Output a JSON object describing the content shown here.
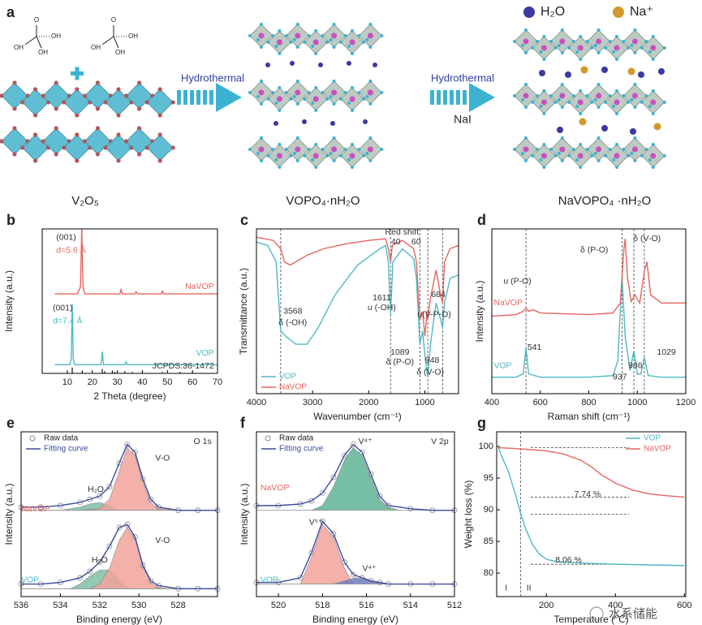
{
  "panel_a": {
    "label": "a",
    "legend": [
      "H₂O",
      "Na⁺"
    ],
    "molecules": [
      [
        "O",
        "OH",
        "OH",
        "OH"
      ],
      [
        "O",
        "OH",
        "OH",
        "OH"
      ]
    ],
    "arrows": [
      {
        "label": "Hydrothermal"
      },
      {
        "label": "Hydrothermal",
        "reagent": "NaI"
      }
    ],
    "captions": [
      "V₂O₅",
      "VOPO₄·nH₂O",
      "NaVOPO₄ ·nH₂O"
    ]
  },
  "watermark": "水系储能",
  "chart_data": [
    {
      "type": "line",
      "label": "b",
      "xlabel": "2 Theta (degree)",
      "ylabel": "Intensity (a.u.)",
      "xlim": [
        0,
        70
      ],
      "xticks": [
        10,
        20,
        30,
        40,
        50,
        60,
        70
      ],
      "ylim": [
        0,
        100
      ],
      "series": [
        {
          "color": "#e5665f",
          "x": [
            5,
            14,
            15.3,
            15.8,
            16.3,
            17,
            31,
            31.5,
            32,
            37,
            37.5,
            38,
            47.5,
            48,
            48.5,
            70
          ],
          "values": [
            55,
            55,
            60,
            100,
            60,
            55,
            55,
            58,
            55,
            55,
            56.5,
            55,
            55,
            57,
            55,
            55
          ]
        },
        {
          "color": "#4fb8c4",
          "x": [
            5,
            11,
            11.6,
            12,
            12.4,
            13,
            23.5,
            24,
            24.5,
            33,
            33.5,
            34,
            70
          ],
          "values": [
            6,
            6,
            10,
            48,
            10,
            6,
            6,
            15,
            6,
            6,
            8,
            6,
            6
          ]
        }
      ],
      "sticks": {
        "color": "#111",
        "x": [
          12,
          16,
          24,
          25,
          28,
          29,
          33,
          36,
          40,
          48,
          55,
          60
        ],
        "values": [
          4,
          2,
          3,
          1.5,
          2,
          1,
          1.5,
          1,
          1,
          1,
          1,
          1
        ]
      },
      "annotations": [
        "(001)",
        "d=5.6 Å",
        "NaVOP",
        "(001)",
        "d=7.4 Å",
        "VOP",
        "JCPDS:36-1472"
      ]
    },
    {
      "type": "line",
      "label": "c",
      "xlabel": "Wavenumber (cm⁻¹)",
      "ylabel": "Transmittance (a.u.)",
      "xlim": [
        4000,
        400
      ],
      "xticks": [
        4000,
        3000,
        2000,
        1000
      ],
      "ylim": [
        0,
        100
      ],
      "legend": "lower left",
      "vlines": [
        3568,
        1611,
        1089,
        948,
        684
      ],
      "series": [
        {
          "name": "VOP",
          "color": "#4fb8c4",
          "x": [
            4000,
            3800,
            3650,
            3568,
            3450,
            3300,
            3100,
            2900,
            2600,
            2200,
            1800,
            1700,
            1650,
            1611,
            1570,
            1400,
            1200,
            1150,
            1089,
            1040,
            990,
            948,
            900,
            800,
            720,
            684,
            650,
            550,
            400
          ],
          "values": [
            92,
            90,
            80,
            38,
            34,
            30,
            30,
            40,
            60,
            78,
            88,
            90,
            80,
            48,
            80,
            88,
            82,
            70,
            30,
            38,
            20,
            10,
            30,
            55,
            45,
            40,
            55,
            70,
            72
          ]
        },
        {
          "name": "NaVOP",
          "color": "#e5665f",
          "x": [
            4000,
            3700,
            3568,
            3500,
            3400,
            3300,
            3100,
            2800,
            2400,
            2000,
            1700,
            1650,
            1611,
            1580,
            1400,
            1200,
            1150,
            1089,
            1040,
            1000,
            960,
            948,
            900,
            800,
            720,
            684,
            650,
            550,
            400
          ],
          "values": [
            95,
            93,
            88,
            80,
            78,
            80,
            84,
            88,
            91,
            93,
            94,
            88,
            80,
            90,
            93,
            88,
            80,
            45,
            50,
            35,
            50,
            45,
            58,
            75,
            60,
            55,
            80,
            88,
            90
          ]
        }
      ],
      "annotations": [
        "Red shift",
        "40",
        "60",
        "1611",
        "u (-OH)",
        "684",
        "u(V-P-O)",
        "3568",
        "δ (-OH)",
        "1089",
        "δ (P-O)",
        "948",
        "δ (V-O)"
      ]
    },
    {
      "type": "line",
      "label": "d",
      "xlabel": "Raman shift (cm⁻¹)",
      "ylabel": "Intensity (a.u.)",
      "xlim": [
        400,
        1200
      ],
      "xticks": [
        400,
        600,
        800,
        1000,
        1200
      ],
      "ylim": [
        0,
        100
      ],
      "vlines": [
        541,
        937,
        986,
        1029
      ],
      "series": [
        {
          "color": "#4fb8c4",
          "x": [
            400,
            500,
            530,
            541,
            552,
            600,
            800,
            900,
            920,
            937,
            950,
            970,
            986,
            1000,
            1015,
            1029,
            1045,
            1100,
            1200
          ],
          "values": [
            10,
            10,
            12,
            28,
            12,
            10,
            10,
            11,
            20,
            72,
            35,
            14,
            26,
            12,
            12,
            22,
            11,
            10,
            10
          ]
        },
        {
          "color": "#e5665f",
          "x": [
            400,
            500,
            530,
            541,
            552,
            570,
            600,
            800,
            900,
            930,
            945,
            950,
            960,
            975,
            990,
            1010,
            1030,
            1040,
            1055,
            1100,
            1200
          ],
          "values": [
            47,
            48,
            50,
            52,
            50,
            51,
            49,
            48,
            49,
            55,
            88,
            94,
            70,
            56,
            60,
            55,
            75,
            80,
            60,
            55,
            55
          ]
        }
      ],
      "annotations": [
        "u (P-O)",
        "δ (P-O)",
        "δ (V-O)",
        "NaVOP",
        "VOP",
        "541",
        "937",
        "986",
        "1029"
      ]
    },
    {
      "type": "line",
      "label": "e",
      "xlabel": "Binding energy (eV)",
      "ylabel": "Intensity (a.u.)",
      "xlim": [
        536,
        526
      ],
      "xticks": [
        536,
        534,
        532,
        530,
        528
      ],
      "ylim": [
        0,
        105
      ],
      "legend": "upper left",
      "fills": [
        {
          "color": "#7fbfa8",
          "base": 55,
          "x": [
            534,
            533,
            532.5,
            532,
            531.5,
            531
          ],
          "values": [
            55,
            57,
            59,
            60,
            58,
            55
          ]
        },
        {
          "color": "#f2a49c",
          "base": 55,
          "x": [
            533,
            532,
            531.5,
            531,
            530.6,
            530.2,
            529.8,
            529.4,
            529,
            528
          ],
          "values": [
            55,
            56,
            62,
            80,
            95,
            90,
            73,
            60,
            56,
            55
          ]
        },
        {
          "color": "#7fbfa8",
          "base": 5,
          "x": [
            533.5,
            533,
            532.5,
            532,
            531.5,
            531,
            530.5
          ],
          "values": [
            5,
            8,
            13,
            17,
            17,
            11,
            5
          ]
        },
        {
          "color": "#f2a49c",
          "base": 5,
          "x": [
            532.5,
            532,
            531.5,
            531,
            530.6,
            530.2,
            529.8,
            529.4,
            529,
            528.5
          ],
          "values": [
            5,
            8,
            18,
            36,
            44,
            37,
            19,
            9,
            6,
            5
          ]
        }
      ],
      "series": [
        {
          "name": "Raw data",
          "color": "#8a8a8a",
          "marker": "o",
          "x": [
            536,
            535,
            534,
            533,
            532.5,
            532,
            531.5,
            531,
            530.6,
            530.2,
            529.8,
            529.4,
            529,
            528,
            527,
            526,
            null,
            536,
            535,
            534,
            533,
            532.5,
            532,
            531.5,
            531,
            530.6,
            530.2,
            529.8,
            529.4,
            529,
            528,
            527,
            526
          ],
          "values": [
            57,
            57,
            58,
            60,
            62,
            64,
            70,
            85,
            97,
            92,
            75,
            62,
            57,
            55,
            55,
            55,
            null,
            8,
            8,
            9,
            12,
            16,
            22,
            32,
            44,
            46,
            38,
            20,
            10,
            7,
            5,
            5,
            5
          ]
        },
        {
          "name": "Fitting curve",
          "color": "#3b4a9e",
          "x": [
            536,
            535,
            534,
            533,
            532.5,
            532,
            531.5,
            531,
            530.6,
            530.2,
            529.8,
            529.4,
            529,
            528,
            527,
            526,
            null,
            536,
            535,
            534,
            533,
            532.5,
            532,
            531.5,
            531,
            530.6,
            530.2,
            529.8,
            529.4,
            529,
            528,
            527,
            526
          ],
          "values": [
            57,
            57,
            58,
            60,
            62,
            64,
            70,
            85,
            97,
            92,
            75,
            62,
            57,
            55,
            55,
            55,
            null,
            8,
            8,
            9,
            12,
            16,
            22,
            32,
            44,
            46,
            38,
            20,
            10,
            7,
            5,
            5,
            5
          ]
        }
      ],
      "annotations": [
        "O 1s",
        "V-O",
        "H₂O",
        "NaVOP",
        "V-O",
        "H₂O",
        "VOP"
      ]
    },
    {
      "type": "line",
      "label": "f",
      "xlabel": "Binding energy (eV)",
      "ylabel": "Intensity (a.u.)",
      "xlim": [
        521,
        512
      ],
      "xticks": [
        520,
        518,
        516,
        514,
        512
      ],
      "ylim": [
        0,
        105
      ],
      "legend": "upper left",
      "fills": [
        {
          "color": "#5fb396",
          "base": 55,
          "x": [
            518.5,
            518,
            517.5,
            517,
            516.6,
            516.2,
            515.8,
            515.4,
            515,
            514.5
          ],
          "values": [
            55,
            58,
            70,
            87,
            95,
            90,
            76,
            62,
            57,
            55
          ]
        },
        {
          "color": "#f2a49c",
          "base": 8,
          "x": [
            519,
            518.5,
            518,
            517.5,
            517,
            516.6
          ],
          "values": [
            8,
            25,
            46,
            38,
            18,
            8
          ]
        },
        {
          "color": "#6f7fc4",
          "base": 8,
          "x": [
            517.5,
            517,
            516.5,
            516,
            515.5,
            515
          ],
          "values": [
            8,
            10,
            12,
            11,
            9,
            8
          ]
        }
      ],
      "series": [
        {
          "name": "Raw data",
          "color": "#8a8a8a",
          "marker": "o",
          "x": [
            521,
            520,
            519,
            518.5,
            518,
            517.5,
            517,
            516.6,
            516.2,
            515.8,
            515.4,
            515,
            514,
            513,
            512,
            null,
            521,
            520,
            519,
            518.5,
            518,
            517.5,
            517,
            516.6,
            516.2,
            515.8,
            515.4,
            515,
            514,
            513,
            512
          ],
          "values": [
            58,
            58,
            59,
            61,
            66,
            76,
            90,
            97,
            92,
            78,
            64,
            58,
            56,
            55,
            55,
            null,
            9,
            9,
            12,
            28,
            48,
            40,
            22,
            14,
            12,
            10,
            9,
            8,
            8,
            8,
            8
          ]
        },
        {
          "name": "Fitting curve",
          "color": "#3b4a9e",
          "x": [
            521,
            520,
            519,
            518.5,
            518,
            517.5,
            517,
            516.6,
            516.2,
            515.8,
            515.4,
            515,
            514,
            513,
            512,
            null,
            521,
            520,
            519,
            518.5,
            518,
            517.5,
            517,
            516.6,
            516.2,
            515.8,
            515.4,
            515,
            514,
            513,
            512
          ],
          "values": [
            58,
            58,
            59,
            61,
            66,
            76,
            90,
            97,
            92,
            78,
            64,
            58,
            56,
            55,
            55,
            null,
            9,
            9,
            12,
            28,
            48,
            40,
            22,
            14,
            12,
            10,
            9,
            8,
            8,
            8,
            8
          ]
        }
      ],
      "annotations": [
        "V 2p",
        "V⁴⁺",
        "NaVOP",
        "V⁵⁺",
        "V⁴⁺",
        "VOP"
      ]
    },
    {
      "type": "line",
      "label": "g",
      "xlabel": "Temperature (℃)",
      "ylabel": "Weight loss (%)",
      "xlim": [
        56,
        604
      ],
      "xticks": [
        200,
        400,
        600
      ],
      "ylim": [
        76.3,
        102.3
      ],
      "yticks": [
        80,
        85,
        90,
        95,
        100
      ],
      "legend": "upper right",
      "vlines": [
        125
      ],
      "hlines": [
        99.8,
        92,
        89.3,
        81.4
      ],
      "series": [
        {
          "name": "VOP",
          "color": "#4fb8c4",
          "x": [
            60,
            70,
            90,
            110,
            125,
            140,
            160,
            180,
            200,
            230,
            300,
            400,
            600
          ],
          "values": [
            100,
            98.5,
            96,
            92.5,
            89.5,
            87,
            84.5,
            83,
            82.2,
            81.8,
            81.6,
            81.4,
            81.2
          ]
        },
        {
          "name": "NaVOP",
          "color": "#e5665f",
          "x": [
            60,
            100,
            200,
            250,
            300,
            330,
            360,
            400,
            450,
            500,
            550,
            600
          ],
          "values": [
            99.8,
            99.7,
            99.3,
            98.8,
            97.8,
            96.8,
            95.5,
            94.2,
            93.1,
            92.5,
            92.2,
            92
          ]
        }
      ],
      "annotations": [
        "7.74 %",
        "8.06 %",
        "I",
        "II"
      ]
    }
  ]
}
